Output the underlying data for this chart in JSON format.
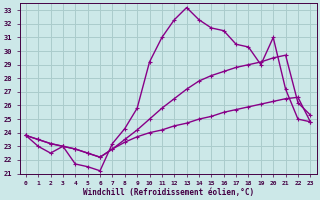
{
  "background_color": "#cce8e8",
  "grid_color": "#aacccc",
  "line_color": "#880088",
  "xlabel": "Windchill (Refroidissement éolien,°C)",
  "ylim": [
    21,
    33.5
  ],
  "xlim": [
    -0.5,
    23.5
  ],
  "yticks": [
    21,
    22,
    23,
    24,
    25,
    26,
    27,
    28,
    29,
    30,
    31,
    32,
    33
  ],
  "xticks": [
    0,
    1,
    2,
    3,
    4,
    5,
    6,
    7,
    8,
    9,
    10,
    11,
    12,
    13,
    14,
    15,
    16,
    17,
    18,
    19,
    20,
    21,
    22,
    23
  ],
  "line1_x": [
    0,
    1,
    2,
    3,
    4,
    5,
    6,
    7,
    8,
    9,
    10,
    11,
    12,
    13,
    14,
    15,
    16,
    17,
    18,
    19,
    20,
    21,
    22,
    23
  ],
  "line1_y": [
    23.8,
    23.0,
    22.5,
    23.0,
    21.7,
    21.5,
    21.2,
    23.2,
    24.3,
    25.8,
    29.2,
    31.0,
    32.3,
    33.2,
    32.3,
    31.7,
    31.5,
    30.5,
    30.3,
    29.0,
    31.0,
    27.2,
    25.0,
    24.8
  ],
  "line2_x": [
    0,
    1,
    2,
    3,
    4,
    5,
    6,
    7,
    8,
    9,
    10,
    11,
    12,
    13,
    14,
    15,
    16,
    17,
    18,
    19,
    20,
    21,
    22,
    23
  ],
  "line2_y": [
    23.8,
    23.5,
    23.2,
    23.0,
    22.8,
    22.5,
    22.2,
    22.8,
    23.5,
    24.2,
    25.0,
    25.8,
    26.5,
    27.2,
    27.8,
    28.2,
    28.5,
    28.8,
    29.0,
    29.2,
    29.5,
    29.7,
    26.2,
    25.3
  ],
  "line3_x": [
    0,
    1,
    2,
    3,
    4,
    5,
    6,
    7,
    8,
    9,
    10,
    11,
    12,
    13,
    14,
    15,
    16,
    17,
    18,
    19,
    20,
    21,
    22,
    23
  ],
  "line3_y": [
    23.8,
    23.5,
    23.2,
    23.0,
    22.8,
    22.5,
    22.2,
    22.8,
    23.3,
    23.7,
    24.0,
    24.2,
    24.5,
    24.7,
    25.0,
    25.2,
    25.5,
    25.7,
    25.9,
    26.1,
    26.3,
    26.5,
    26.6,
    24.8
  ]
}
